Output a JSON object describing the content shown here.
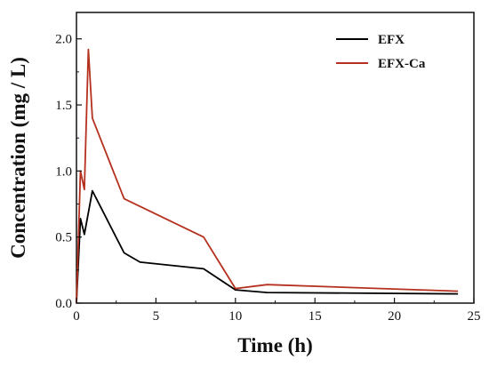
{
  "chart_data": {
    "type": "line",
    "title": "",
    "xlabel": "Time (h)",
    "ylabel": "Concentration (mg / L)",
    "xlim": [
      0,
      25
    ],
    "ylim": [
      0,
      2.2
    ],
    "xticks": [
      0,
      5,
      10,
      15,
      20,
      25
    ],
    "xtick_labels": [
      "0",
      "5",
      "10",
      "15",
      "20",
      "25"
    ],
    "yticks": [
      0.0,
      0.5,
      1.0,
      1.5,
      2.0
    ],
    "ytick_labels": [
      "0.0",
      "0.5",
      "1.0",
      "1.5",
      "2.0"
    ],
    "grid": false,
    "legend_position": "top-right",
    "series": [
      {
        "name": "EFX",
        "color": "#000000",
        "x": [
          0,
          0.25,
          0.5,
          1,
          3,
          4,
          8,
          10,
          12,
          24
        ],
        "y": [
          0.0,
          0.64,
          0.52,
          0.85,
          0.38,
          0.31,
          0.26,
          0.1,
          0.08,
          0.07
        ]
      },
      {
        "name": "EFX-Ca",
        "color": "#b5301e",
        "x": [
          0,
          0.25,
          0.5,
          0.75,
          1,
          3,
          8,
          10,
          12,
          24
        ],
        "y": [
          0.0,
          1.0,
          0.86,
          1.92,
          1.4,
          0.79,
          0.5,
          0.11,
          0.14,
          0.09
        ]
      }
    ]
  }
}
